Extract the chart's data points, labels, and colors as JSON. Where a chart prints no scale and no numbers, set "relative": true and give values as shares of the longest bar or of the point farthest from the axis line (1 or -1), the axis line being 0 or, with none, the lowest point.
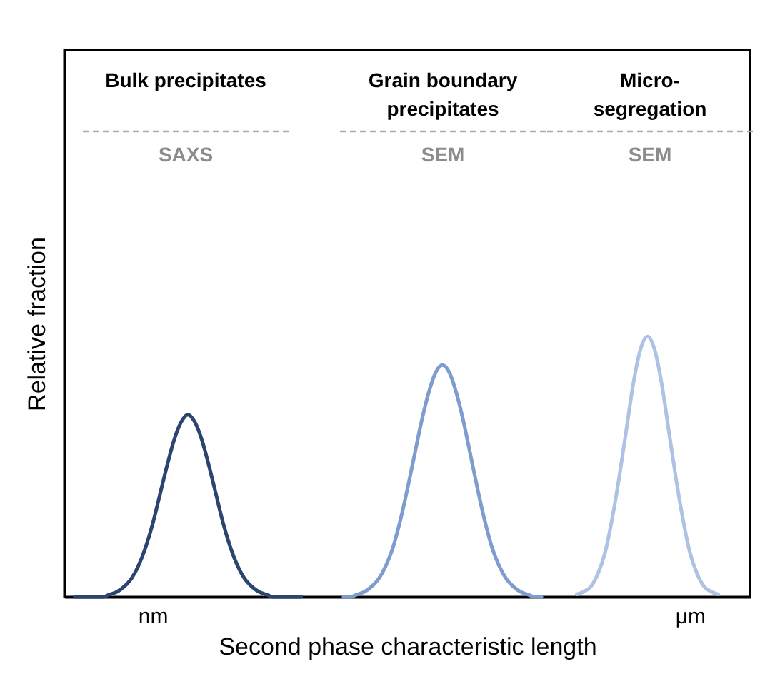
{
  "chart_data": {
    "type": "line",
    "relative": true,
    "xlabel": "Second phase characteristic length",
    "ylabel": "Relative fraction",
    "categories": [
      null,
      null,
      null,
      null,
      null,
      null,
      null,
      null,
      null,
      null,
      null,
      null,
      "nm",
      null,
      null,
      null,
      null,
      null,
      null,
      null,
      null,
      null,
      null,
      null,
      null,
      null,
      null,
      null,
      null,
      null,
      null,
      null,
      null,
      null,
      null,
      null,
      null,
      null,
      null,
      null,
      null,
      null,
      null,
      null,
      null,
      null,
      null,
      null,
      null,
      null,
      null,
      null,
      null,
      null,
      null,
      null,
      null,
      null,
      null,
      null,
      null,
      null,
      null,
      null,
      null,
      null,
      null,
      null,
      null,
      null,
      null,
      null,
      null,
      null,
      null,
      null,
      null,
      null,
      null,
      null,
      null,
      null,
      null,
      null,
      null,
      null,
      null,
      null,
      "μm",
      null,
      null,
      null,
      null,
      null,
      null,
      null,
      null
    ],
    "series": [
      {
        "color": "#2b4570",
        "values": [
          null,
          0,
          0,
          0,
          0,
          0,
          0.01,
          0.02,
          0.04,
          0.07,
          0.12,
          0.19,
          0.28,
          0.39,
          0.5,
          0.6,
          0.67,
          0.7,
          0.67,
          0.6,
          0.5,
          0.39,
          0.28,
          0.19,
          0.12,
          0.07,
          0.04,
          0.02,
          0.01,
          0,
          0,
          0,
          0,
          0,
          null,
          null,
          null,
          null,
          null,
          null,
          null,
          null,
          null,
          null,
          null,
          null,
          null,
          null,
          null,
          null,
          null,
          null,
          null,
          null,
          null,
          null,
          null,
          null,
          null,
          null,
          null,
          null,
          null,
          null,
          null,
          null,
          null,
          null,
          null,
          null,
          null,
          null,
          null,
          null,
          null,
          null,
          null,
          null,
          null,
          null,
          null,
          null,
          null,
          null,
          null,
          null,
          null,
          null,
          null,
          null,
          null,
          null,
          null,
          null,
          null,
          null,
          null
        ]
      },
      {
        "color": "#7f9cce",
        "values": [
          null,
          null,
          null,
          null,
          null,
          null,
          null,
          null,
          null,
          null,
          null,
          null,
          null,
          null,
          null,
          null,
          null,
          null,
          null,
          null,
          null,
          null,
          null,
          null,
          null,
          null,
          null,
          null,
          null,
          null,
          null,
          null,
          null,
          null,
          null,
          null,
          null,
          null,
          null,
          0,
          0,
          0.01,
          0.02,
          0.04,
          0.07,
          0.12,
          0.19,
          0.29,
          0.41,
          0.54,
          0.67,
          0.78,
          0.86,
          0.89,
          0.86,
          0.78,
          0.67,
          0.54,
          0.41,
          0.29,
          0.19,
          0.12,
          0.07,
          0.04,
          0.02,
          0.01,
          0,
          0,
          null,
          null,
          null,
          null,
          null,
          null,
          null,
          null,
          null,
          null,
          null,
          null,
          null,
          null,
          null,
          null,
          null,
          null,
          null,
          null,
          null,
          null,
          null,
          null,
          null,
          null,
          null,
          null,
          null
        ]
      },
      {
        "color": "#aec3e3",
        "values": [
          null,
          null,
          null,
          null,
          null,
          null,
          null,
          null,
          null,
          null,
          null,
          null,
          null,
          null,
          null,
          null,
          null,
          null,
          null,
          null,
          null,
          null,
          null,
          null,
          null,
          null,
          null,
          null,
          null,
          null,
          null,
          null,
          null,
          null,
          null,
          null,
          null,
          null,
          null,
          null,
          null,
          null,
          null,
          null,
          null,
          null,
          null,
          null,
          null,
          null,
          null,
          null,
          null,
          null,
          null,
          null,
          null,
          null,
          null,
          null,
          null,
          null,
          null,
          null,
          null,
          null,
          null,
          null,
          null,
          null,
          null,
          null,
          0.01,
          0.02,
          0.04,
          0.09,
          0.17,
          0.3,
          0.46,
          0.64,
          0.82,
          0.95,
          1,
          0.95,
          0.82,
          0.64,
          0.46,
          0.3,
          0.17,
          0.09,
          0.04,
          0.02,
          0.01,
          null,
          null,
          null,
          null
        ]
      }
    ],
    "annotations": [
      "Bulk precipitates",
      "SAXS",
      "Grain boundary\nprecipitates",
      "SEM",
      "Micro-\nsegregation",
      "SEM"
    ]
  }
}
